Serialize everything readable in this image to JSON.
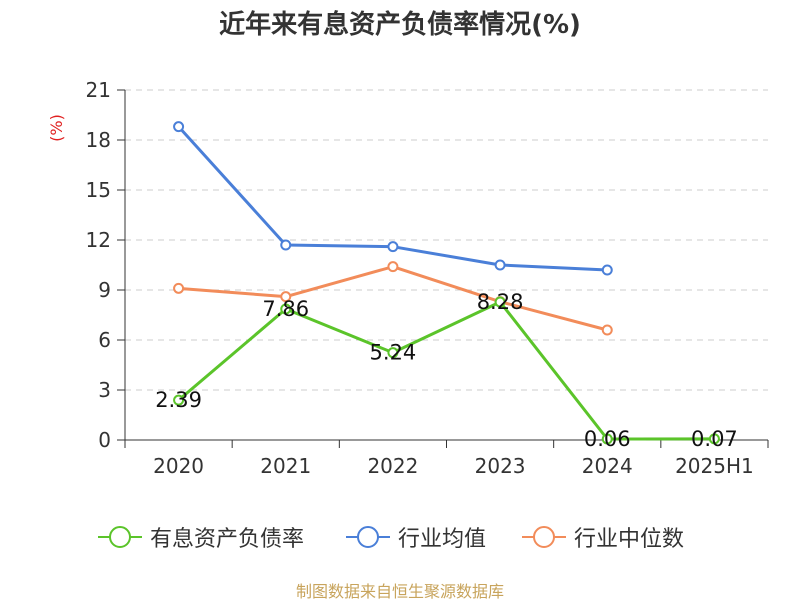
{
  "chart_data": {
    "type": "line",
    "title": "近年来有息资产负债率情况(%)",
    "ylabel": "(%)",
    "xlabel": "",
    "categories": [
      "2020",
      "2021",
      "2022",
      "2023",
      "2024",
      "2025H1"
    ],
    "ylim": [
      0,
      21
    ],
    "yticks": [
      0,
      3,
      6,
      9,
      12,
      15,
      18,
      21
    ],
    "grid": true,
    "legend_position": "bottom",
    "series": [
      {
        "name": "有息资产负债率",
        "color": "#5bc42a",
        "values": [
          2.39,
          7.86,
          5.24,
          8.28,
          0.06,
          0.07
        ],
        "labels": [
          "2.39",
          "7.86",
          "5.24",
          "8.28",
          "0.06",
          "0.07"
        ]
      },
      {
        "name": "行业均值",
        "color": "#4a7fd8",
        "values": [
          18.8,
          11.7,
          11.6,
          10.5,
          10.2,
          null
        ]
      },
      {
        "name": "行业中位数",
        "color": "#f28c5a",
        "values": [
          9.1,
          8.6,
          10.4,
          8.3,
          6.6,
          null
        ]
      }
    ]
  },
  "source_note": "制图数据来自恒生聚源数据库"
}
